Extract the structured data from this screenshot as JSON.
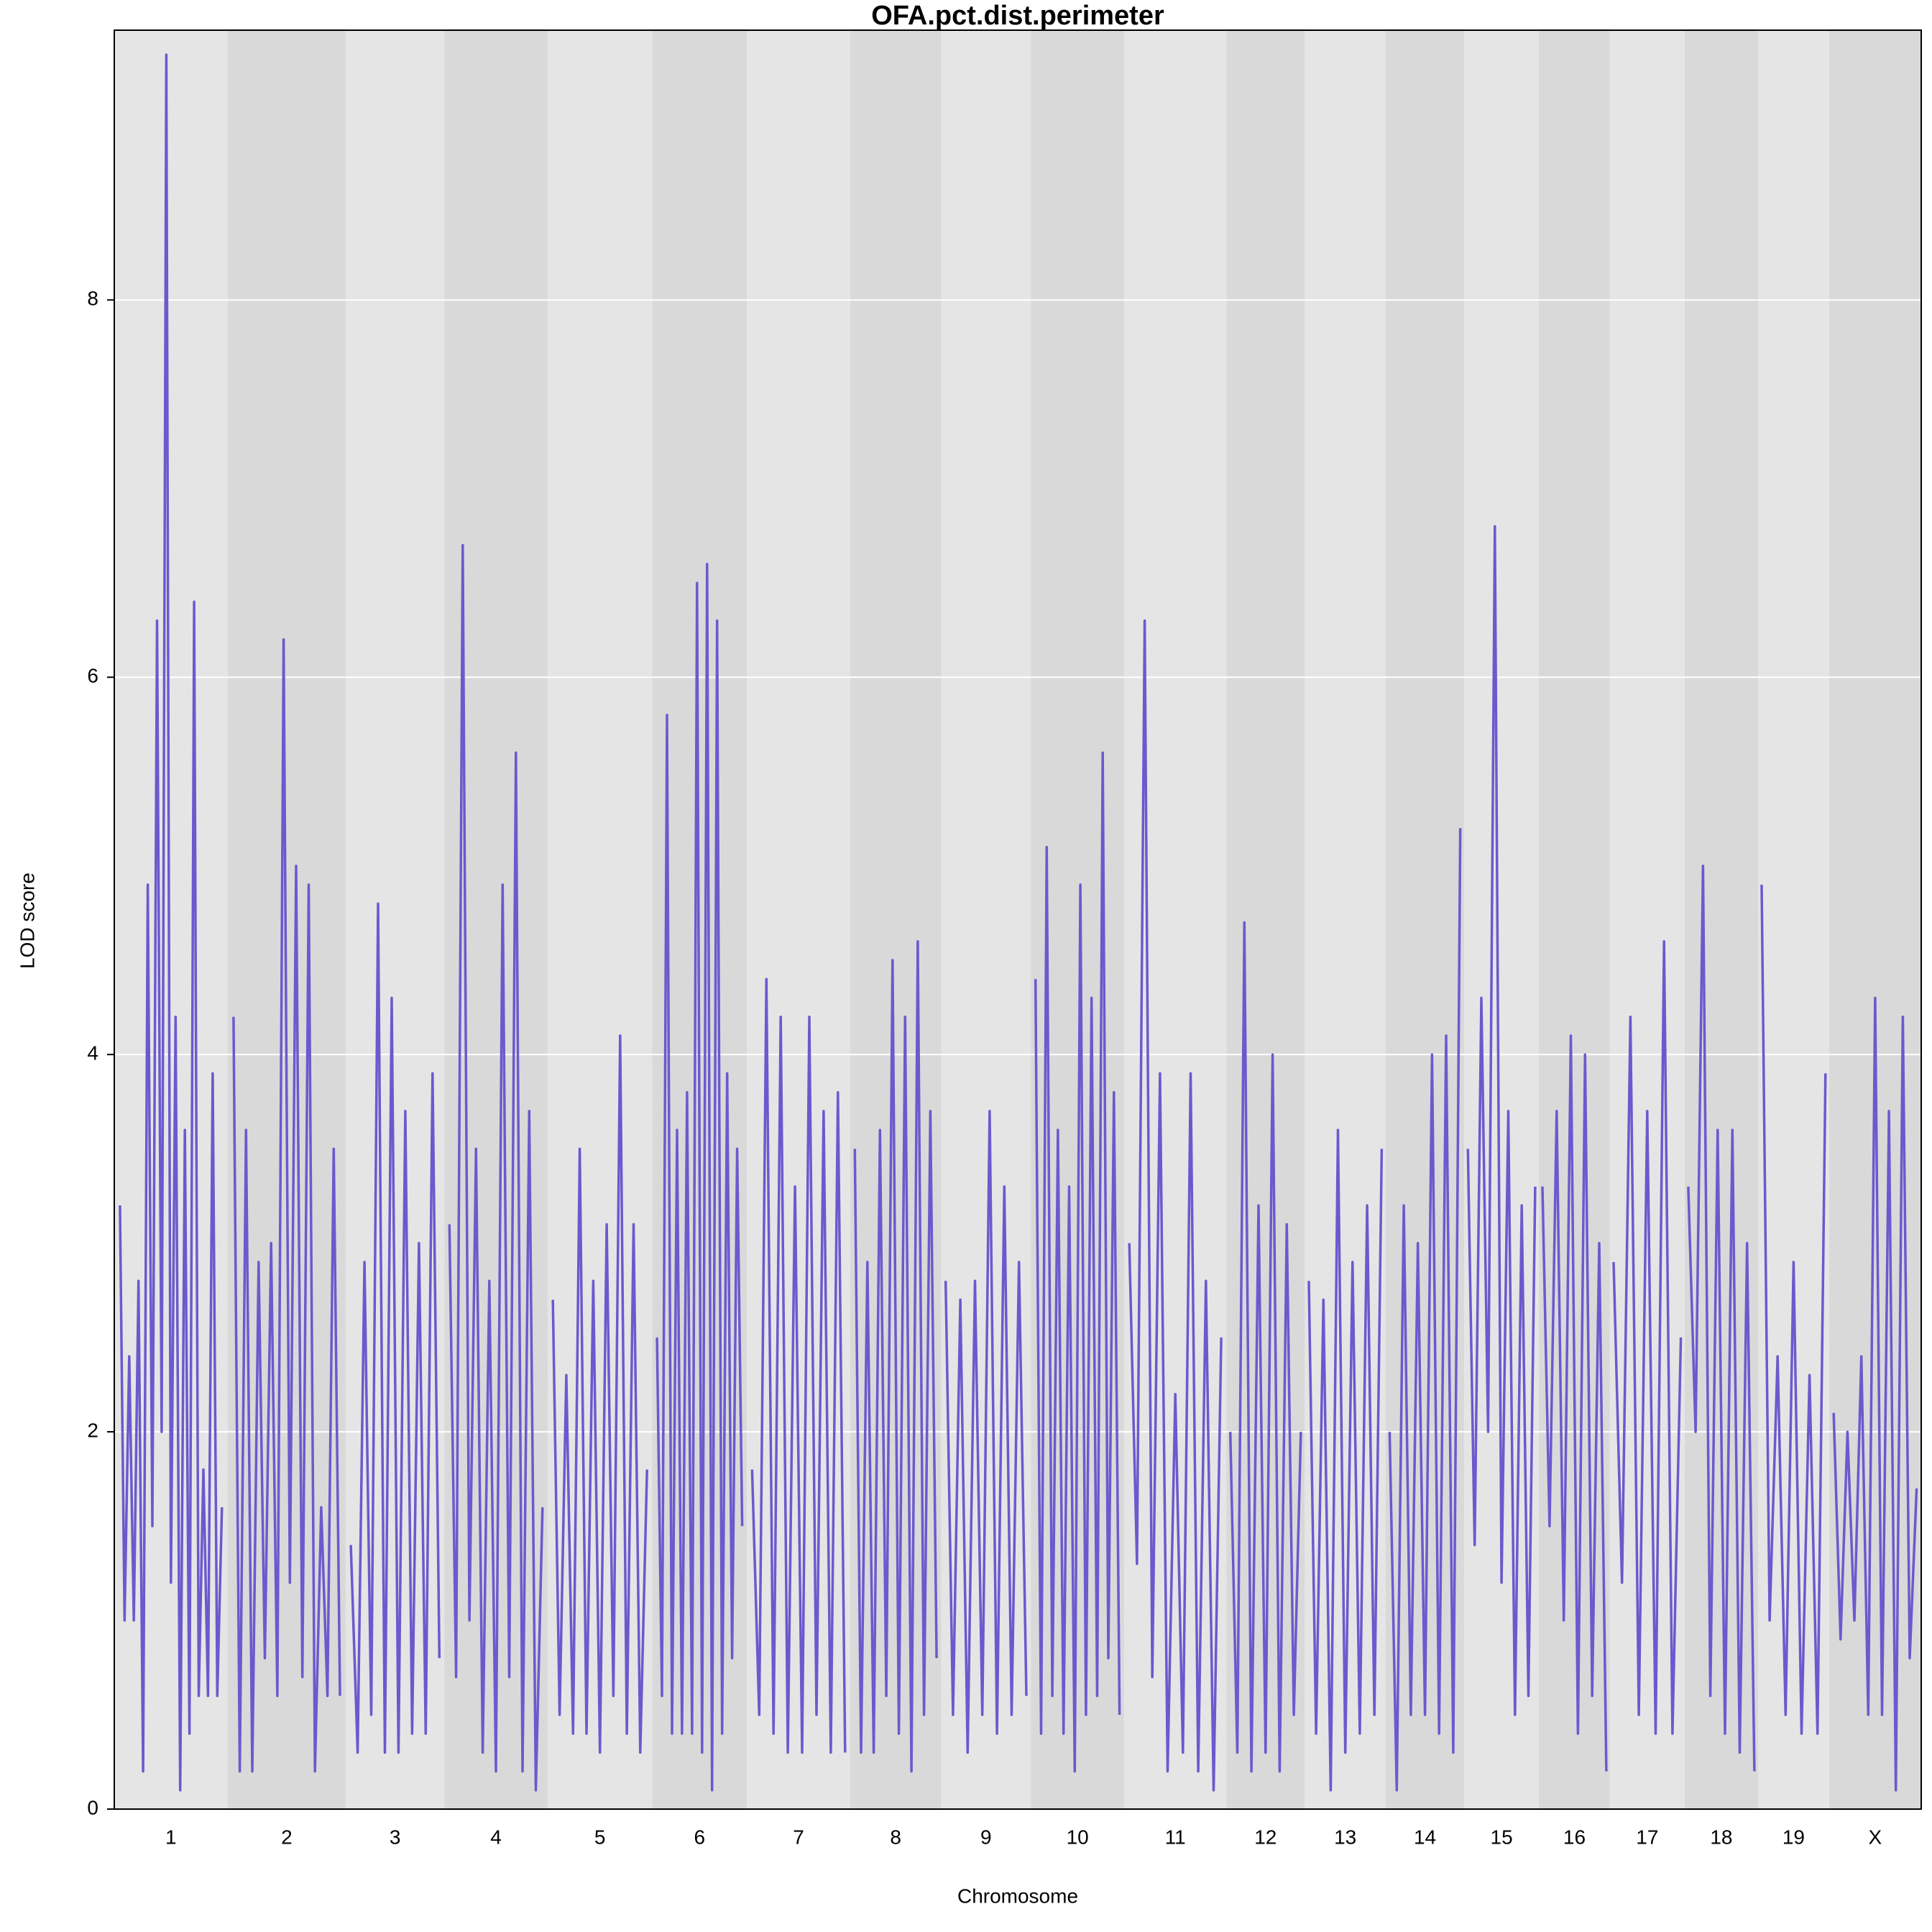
{
  "chart_data": {
    "type": "line",
    "title": "OFA.pct.dist.perimeter",
    "x_label": "Chromosome",
    "y_label": "LOD score",
    "color": "#6a5acd",
    "ylim": [
      0,
      9.43
    ],
    "yticks": [
      0,
      2,
      4,
      6,
      8
    ],
    "grid": true,
    "chromosomes": [
      {
        "label": "1",
        "values": [
          3.2,
          1.0,
          2.4,
          1.0,
          2.8,
          0.2,
          4.9,
          1.5,
          6.3,
          2.0,
          9.3,
          1.2,
          4.2,
          0.1,
          3.6,
          0.4,
          6.4,
          0.6,
          1.8,
          0.6,
          3.9,
          0.6,
          1.6
        ]
      },
      {
        "label": "2",
        "values": [
          4.2,
          0.2,
          3.6,
          0.2,
          2.9,
          0.8,
          3.0,
          0.6,
          6.2,
          1.2,
          5.0,
          0.7,
          4.9,
          0.2,
          1.6,
          0.6,
          3.5,
          0.6
        ]
      },
      {
        "label": "3",
        "values": [
          1.4,
          0.3,
          2.9,
          0.5,
          4.8,
          0.3,
          4.3,
          0.3,
          3.7,
          0.4,
          3.0,
          0.4,
          3.9,
          0.8
        ]
      },
      {
        "label": "4",
        "values": [
          3.1,
          0.7,
          6.7,
          1.0,
          3.5,
          0.3,
          2.8,
          0.2,
          4.9,
          0.7,
          5.6,
          0.2,
          3.7,
          0.1,
          1.6
        ]
      },
      {
        "label": "5",
        "values": [
          2.7,
          0.5,
          2.3,
          0.4,
          3.5,
          0.4,
          2.8,
          0.3,
          3.1,
          0.6,
          4.1,
          0.4,
          3.1,
          0.3,
          1.8
        ]
      },
      {
        "label": "6",
        "values": [
          2.5,
          0.6,
          5.8,
          0.4,
          3.6,
          0.4,
          3.8,
          0.4,
          6.5,
          0.3,
          6.6,
          0.1,
          6.3,
          0.4,
          3.9,
          0.8,
          3.5,
          1.5
        ]
      },
      {
        "label": "7",
        "values": [
          1.8,
          0.5,
          4.4,
          0.4,
          4.2,
          0.3,
          3.3,
          0.3,
          4.2,
          0.5,
          3.7,
          0.3,
          3.8,
          0.3
        ]
      },
      {
        "label": "8",
        "values": [
          3.5,
          0.3,
          2.9,
          0.3,
          3.6,
          0.6,
          4.5,
          0.4,
          4.2,
          0.2,
          4.6,
          0.5,
          3.7,
          0.8
        ]
      },
      {
        "label": "9",
        "values": [
          2.8,
          0.5,
          2.7,
          0.3,
          2.8,
          0.5,
          3.7,
          0.4,
          3.3,
          0.5,
          2.9,
          0.6
        ]
      },
      {
        "label": "10",
        "values": [
          4.4,
          0.4,
          5.1,
          0.6,
          3.6,
          0.4,
          3.3,
          0.2,
          4.9,
          0.5,
          4.3,
          0.6,
          5.6,
          0.8,
          3.8,
          0.5
        ]
      },
      {
        "label": "11",
        "values": [
          3.0,
          1.3,
          6.3,
          0.7,
          3.9,
          0.2,
          2.2,
          0.3,
          3.9,
          0.2,
          2.8,
          0.1,
          2.5
        ]
      },
      {
        "label": "12",
        "values": [
          2.0,
          0.3,
          4.7,
          0.2,
          3.2,
          0.3,
          4.0,
          0.2,
          3.1,
          0.5,
          2.0
        ]
      },
      {
        "label": "13",
        "values": [
          2.8,
          0.4,
          2.7,
          0.1,
          3.6,
          0.3,
          2.9,
          0.4,
          3.2,
          0.5,
          3.5
        ]
      },
      {
        "label": "14",
        "values": [
          2.0,
          0.1,
          3.2,
          0.5,
          3.0,
          0.5,
          4.0,
          0.4,
          4.1,
          0.3,
          5.2
        ]
      },
      {
        "label": "15",
        "values": [
          3.5,
          1.4,
          4.3,
          2.0,
          6.8,
          1.2,
          3.7,
          0.5,
          3.2,
          0.6,
          3.3
        ]
      },
      {
        "label": "16",
        "values": [
          3.3,
          1.5,
          3.7,
          1.0,
          4.1,
          0.4,
          4.0,
          0.6,
          3.0,
          0.2
        ]
      },
      {
        "label": "17",
        "values": [
          2.9,
          1.2,
          4.2,
          0.5,
          3.7,
          0.4,
          4.6,
          0.4,
          2.5
        ]
      },
      {
        "label": "18",
        "values": [
          3.3,
          2.0,
          5.0,
          0.6,
          3.6,
          0.4,
          3.6,
          0.3,
          3.0,
          0.2
        ]
      },
      {
        "label": "19",
        "values": [
          4.9,
          1.0,
          2.4,
          0.5,
          2.9,
          0.4,
          2.3,
          0.4,
          3.9
        ]
      },
      {
        "label": "X",
        "values": [
          2.1,
          0.9,
          2.0,
          1.0,
          2.4,
          0.5,
          4.3,
          0.5,
          3.7,
          0.1,
          4.2,
          0.8,
          1.7
        ]
      }
    ]
  }
}
